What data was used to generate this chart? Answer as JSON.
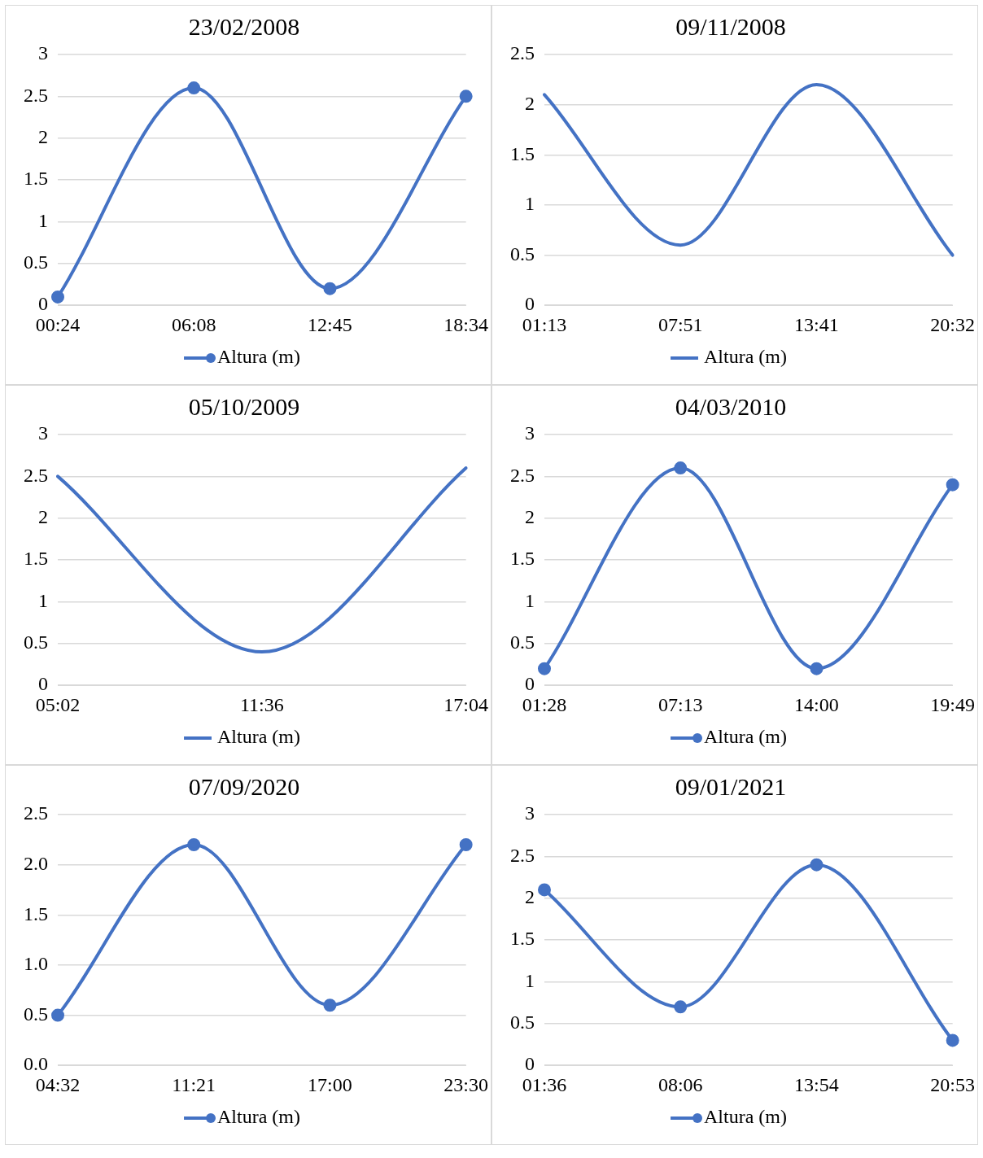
{
  "chart_data": [
    {
      "type": "line",
      "title": "23/02/2008",
      "categories": [
        "00:24",
        "06:08",
        "12:45",
        "18:34"
      ],
      "series": [
        {
          "name": "Altura (m)",
          "color": "#4472c4",
          "values": [
            0.1,
            2.6,
            0.2,
            2.5
          ]
        }
      ],
      "ylim": [
        0,
        3
      ],
      "yticks": [
        0,
        0.5,
        1,
        1.5,
        2,
        2.5,
        3
      ],
      "grid": "y",
      "legend": "bottom",
      "marker": "circle"
    },
    {
      "type": "line",
      "title": "09/11/2008",
      "categories": [
        "01:13",
        "07:51",
        "13:41",
        "20:32"
      ],
      "series": [
        {
          "name": "Altura (m)",
          "color": "#4472c4",
          "values": [
            2.1,
            0.6,
            2.2,
            0.5
          ]
        }
      ],
      "ylim": [
        0,
        2.5
      ],
      "yticks": [
        0,
        0.5,
        1,
        1.5,
        2,
        2.5
      ],
      "grid": "y",
      "legend": "bottom",
      "marker": "none"
    },
    {
      "type": "line",
      "title": "05/10/2009",
      "categories": [
        "05:02",
        "11:36",
        "17:04"
      ],
      "series": [
        {
          "name": "Altura (m)",
          "color": "#4472c4",
          "values": [
            2.5,
            0.4,
            2.6
          ]
        }
      ],
      "ylim": [
        0,
        3
      ],
      "yticks": [
        0,
        0.5,
        1,
        1.5,
        2,
        2.5,
        3
      ],
      "grid": "y",
      "legend": "bottom",
      "marker": "none"
    },
    {
      "type": "line",
      "title": "04/03/2010",
      "categories": [
        "01:28",
        "07:13",
        "14:00",
        "19:49"
      ],
      "series": [
        {
          "name": "Altura (m)",
          "color": "#4472c4",
          "values": [
            0.2,
            2.6,
            0.2,
            2.4
          ]
        }
      ],
      "ylim": [
        0,
        3
      ],
      "yticks": [
        0,
        0.5,
        1,
        1.5,
        2,
        2.5,
        3
      ],
      "grid": "y",
      "legend": "bottom",
      "marker": "circle"
    },
    {
      "type": "line",
      "title": "07/09/2020",
      "categories": [
        "04:32",
        "11:21",
        "17:00",
        "23:30"
      ],
      "series": [
        {
          "name": "Altura (m)",
          "color": "#4472c4",
          "values": [
            0.5,
            2.2,
            0.6,
            2.2
          ]
        }
      ],
      "ylim": [
        0,
        2.5
      ],
      "yticks": [
        {
          "value": 0,
          "label": "0.0"
        },
        0.5,
        {
          "value": 1,
          "label": "1.0"
        },
        1.5,
        {
          "value": 2,
          "label": "2.0"
        },
        2.5
      ],
      "grid": "y",
      "legend": "bottom",
      "marker": "circle"
    },
    {
      "type": "line",
      "title": "09/01/2021",
      "categories": [
        "01:36",
        "08:06",
        "13:54",
        "20:53"
      ],
      "series": [
        {
          "name": "Altura (m)",
          "color": "#4472c4",
          "values": [
            2.1,
            0.7,
            2.4,
            0.3
          ]
        }
      ],
      "ylim": [
        0,
        3
      ],
      "yticks": [
        0,
        0.5,
        1,
        1.5,
        2,
        2.5,
        3
      ],
      "grid": "y",
      "legend": "bottom",
      "marker": "circle"
    }
  ]
}
